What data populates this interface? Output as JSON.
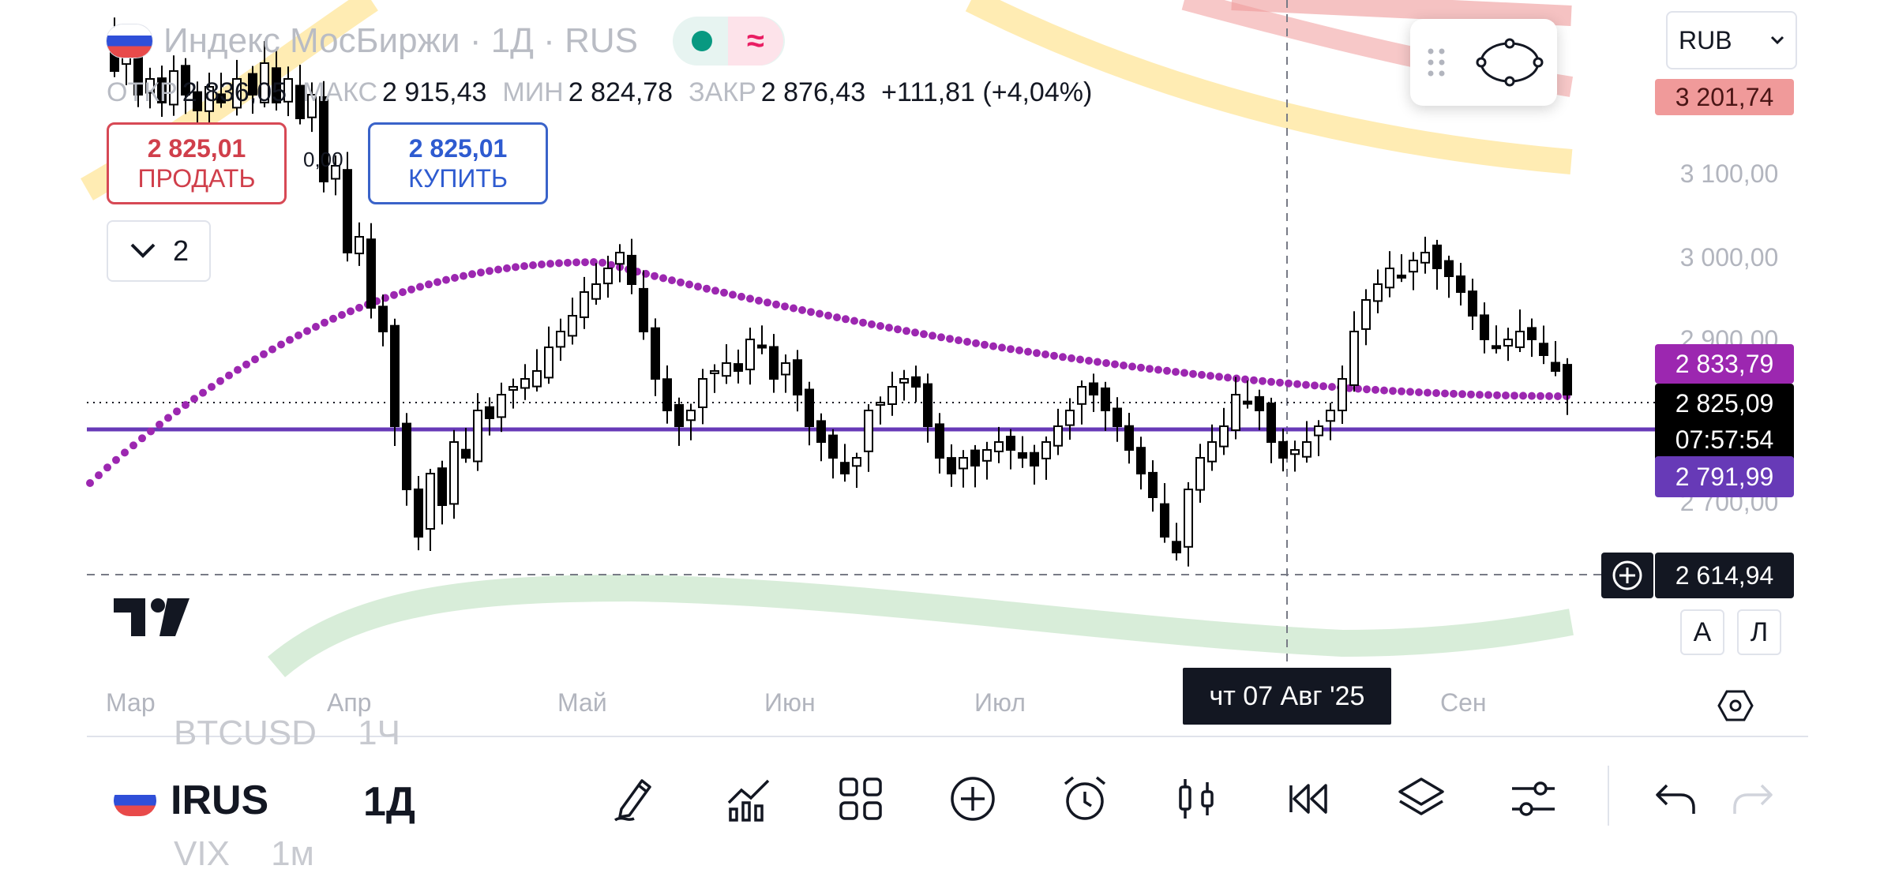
{
  "header": {
    "title": "Индекс МосБиржи · 1Д · RUS",
    "ohlc": {
      "open_label": "ОТКР",
      "open": "2 836,05",
      "high_label": "МАКС",
      "high": "2 915,43",
      "low_label": "МИН",
      "low": "2 824,78",
      "close_label": "ЗАКР",
      "close": "2 876,43",
      "change": "+111,81 (+4,04%)"
    }
  },
  "trade": {
    "sell_price": "2 825,01",
    "sell_label": "ПРОДАТЬ",
    "buy_price": "2 825,01",
    "buy_label": "КУПИТЬ",
    "spread": "0,00"
  },
  "indicators": {
    "count": "2"
  },
  "currency": {
    "selected": "RUB"
  },
  "price_scale": {
    "labels": [
      "3 100,00",
      "3 000,00",
      "2 900,00",
      "2 700,00"
    ],
    "upper_band": "3 201,74",
    "ma_value": "2 833,79",
    "last_price": "2 825,09",
    "countdown": "07:57:54",
    "line_value": "2 791,99",
    "crosshair_price": "2 614,94",
    "auto_btn": "А",
    "log_btn": "Л"
  },
  "time_axis": {
    "months": [
      "Мар",
      "Апр",
      "Май",
      "Июн",
      "Июл",
      "Сен"
    ],
    "crosshair_date": "чт 07 Авг '25"
  },
  "bottom": {
    "symbol_prev": "BTCUSD",
    "interval_prev": "1Ч",
    "symbol": "IRUS",
    "interval": "1Д",
    "symbol_next": "VIX",
    "interval_next": "1м"
  },
  "icons": [
    "pencil-icon",
    "indicators-icon",
    "apps-grid-icon",
    "plus-circle-icon",
    "alarm-icon",
    "candles-icon",
    "replay-icon",
    "layers-icon",
    "sliders-icon",
    "undo-icon",
    "redo-icon"
  ],
  "colors": {
    "ma": "#9c27b0",
    "hline": "#673ab7",
    "bull": "#ffffff",
    "bear": "#000000"
  }
}
